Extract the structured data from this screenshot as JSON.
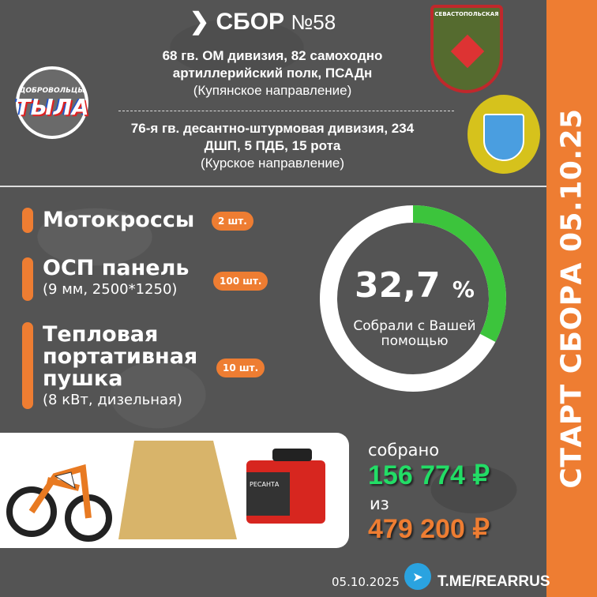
{
  "header": {
    "title": "СБОР",
    "number": "№58"
  },
  "units": [
    {
      "name": "68 гв. ОМ дивизия, 82 самоходно артиллерийский полк, ПСАДн",
      "direction": "(Купянское направление)"
    },
    {
      "name": "76-я гв. десантно-штурмовая дивизия, 234 ДШП, 5 ПДБ, 15 рота",
      "direction": "(Курское направление)"
    }
  ],
  "logo": {
    "text_top": "ДОБРОВОЛЬЦЫ",
    "text_main": "ТЫЛА"
  },
  "patch": {
    "text": "СЕВАСТОПОЛЬСКАЯ"
  },
  "items": [
    {
      "name": "Мотокроссы",
      "detail": "",
      "qty": "2 шт."
    },
    {
      "name": "ОСП панель",
      "detail": "(9 мм, 2500*1250)",
      "qty": "100 шт."
    },
    {
      "name": "Тепловая портативная пушка",
      "detail": "(8 кВт, дизельная)",
      "qty": "10 шт."
    }
  ],
  "progress": {
    "value_text": "32,7",
    "unit": "%",
    "fraction": 0.327,
    "label": "Собрали с Вашей помощью",
    "color": "#3cc43c"
  },
  "totals": {
    "collected_label": "собрано",
    "collected": "156 774 ₽",
    "goal_label": "из",
    "goal": "479 200 ₽",
    "collected_color": "#22dd66",
    "goal_color": "#ee7d32"
  },
  "heater_brand": "РЕСАНТА",
  "footer": {
    "date": "05.10.2025",
    "link": "T.ME/REARRUS",
    "icon": "telegram-icon"
  },
  "side_banner": "СТАРТ СБОРА 05.10.25"
}
